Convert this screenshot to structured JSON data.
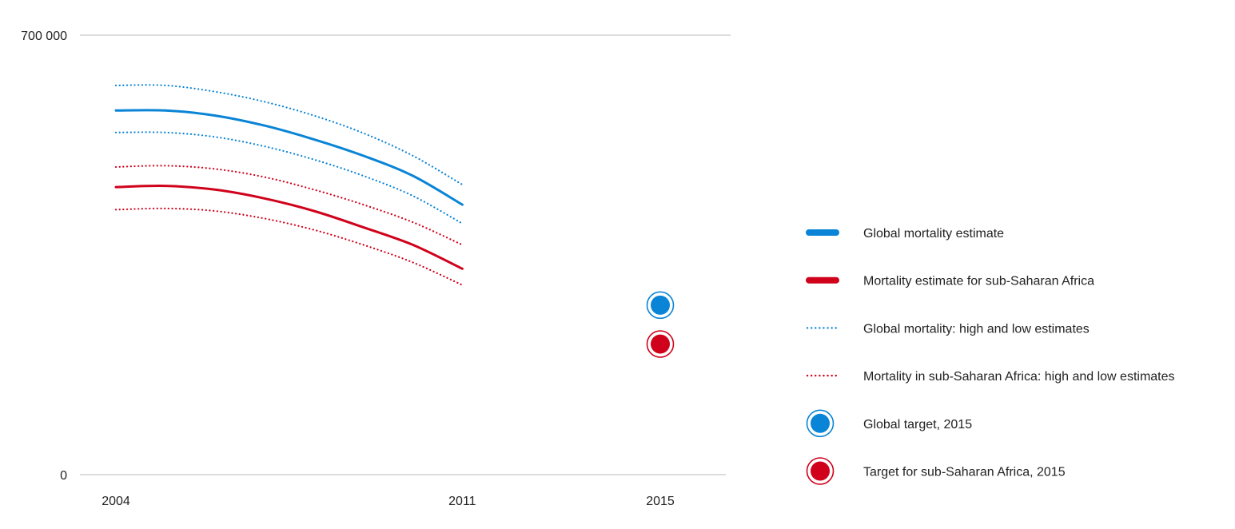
{
  "chart_data": {
    "type": "line",
    "title": "",
    "xlabel": "",
    "ylabel": "",
    "ylim": [
      0,
      700000
    ],
    "xlim": [
      2004,
      2015
    ],
    "grid": false,
    "legend_placement": "right",
    "y_ticks": [
      "0",
      "700 000"
    ],
    "x_ticks": [
      {
        "value": 2004,
        "label": "2004"
      },
      {
        "value": 2011,
        "label": "2011"
      },
      {
        "value": 2015,
        "label": "2015"
      }
    ],
    "colors": {
      "global": "#0a84d6",
      "ssa": "#d0021b",
      "axis": "#bbbbbb"
    },
    "series": [
      {
        "name": "Global mortality estimate",
        "key": "global_est",
        "color": "#0a84d6",
        "style": "solid",
        "x": [
          2004,
          2005,
          2006,
          2007,
          2008,
          2009,
          2010,
          2011
        ],
        "y": [
          580000,
          580000,
          572000,
          556000,
          534000,
          508000,
          476000,
          430000
        ]
      },
      {
        "name": "Global mortality: high and low estimates",
        "key": "global_high",
        "color": "#0a84d6",
        "style": "dotted",
        "x": [
          2004,
          2005,
          2006,
          2007,
          2008,
          2009,
          2010,
          2011
        ],
        "y": [
          620000,
          620000,
          610000,
          594000,
          572000,
          544000,
          508000,
          462000
        ]
      },
      {
        "name": "",
        "key": "global_low",
        "color": "#0a84d6",
        "style": "dotted",
        "x": [
          2004,
          2005,
          2006,
          2007,
          2008,
          2009,
          2010,
          2011
        ],
        "y": [
          545000,
          545000,
          538000,
          523000,
          502000,
          476000,
          444000,
          400000
        ]
      },
      {
        "name": "Mortality estimate for sub-Saharan Africa",
        "key": "ssa_est",
        "color": "#d0021b",
        "style": "solid",
        "x": [
          2004,
          2005,
          2006,
          2007,
          2008,
          2009,
          2010,
          2011
        ],
        "y": [
          458000,
          460000,
          454000,
          440000,
          420000,
          394000,
          366000,
          328000
        ]
      },
      {
        "name": "Mortality in sub-Saharan Africa:  high and low estimates",
        "key": "ssa_high",
        "color": "#d0021b",
        "style": "dotted",
        "x": [
          2004,
          2005,
          2006,
          2007,
          2008,
          2009,
          2010,
          2011
        ],
        "y": [
          490000,
          492000,
          487000,
          474000,
          454000,
          430000,
          402000,
          366000
        ]
      },
      {
        "name": "",
        "key": "ssa_low",
        "color": "#d0021b",
        "style": "dotted",
        "x": [
          2004,
          2005,
          2006,
          2007,
          2008,
          2009,
          2010,
          2011
        ],
        "y": [
          422000,
          424000,
          420000,
          408000,
          390000,
          366000,
          338000,
          302000
        ]
      }
    ],
    "targets": [
      {
        "name": "Global target, 2015",
        "key": "global_target",
        "color": "#0a84d6",
        "x": 2015,
        "y": 270000
      },
      {
        "name": "Target for sub-Saharan Africa, 2015",
        "key": "ssa_target",
        "color": "#d0021b",
        "x": 2015,
        "y": 208000
      }
    ],
    "legend": [
      {
        "label": "Global mortality estimate",
        "kind": "solid",
        "color": "#0a84d6"
      },
      {
        "label": "Mortality estimate for sub-Saharan Africa",
        "kind": "solid",
        "color": "#d0021b"
      },
      {
        "label": "Global mortality: high and low estimates",
        "kind": "dotted",
        "color": "#0a84d6"
      },
      {
        "label": "Mortality in sub-Saharan Africa:  high and low estimates",
        "kind": "dotted",
        "color": "#d0021b"
      },
      {
        "label": "Global target, 2015",
        "kind": "marker",
        "color": "#0a84d6"
      },
      {
        "label": "Target for sub-Saharan Africa, 2015",
        "kind": "marker",
        "color": "#d0021b"
      }
    ]
  }
}
